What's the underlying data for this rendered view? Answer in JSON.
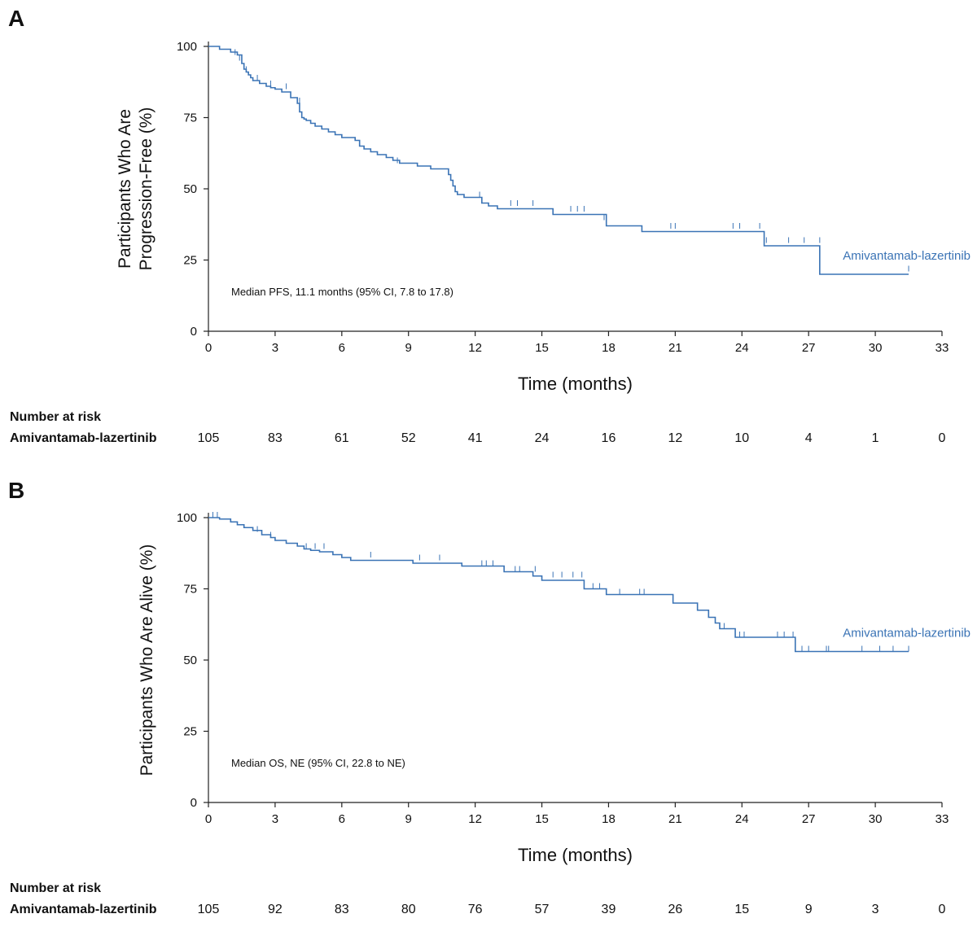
{
  "chart_data": [
    {
      "type": "line",
      "panel": "A",
      "xlabel": "Time (months)",
      "ylabel": [
        "Participants Who Are",
        "Progression-Free (%)"
      ],
      "xlim": [
        0,
        33
      ],
      "ylim": [
        0,
        100
      ],
      "xticks": [
        0,
        3,
        6,
        9,
        12,
        15,
        18,
        21,
        24,
        27,
        30,
        33
      ],
      "yticks": [
        0,
        25,
        50,
        75,
        100
      ],
      "annotation": "Median PFS, 11.1 months (95% CI, 7.8 to 17.8)",
      "series": [
        {
          "name": "Amivantamab-lazertinib",
          "color": "#3a73b5",
          "x": [
            0,
            0.5,
            1.0,
            1.3,
            1.5,
            1.6,
            1.7,
            1.8,
            1.9,
            2.0,
            2.3,
            2.6,
            2.8,
            3.0,
            3.3,
            3.7,
            4.0,
            4.1,
            4.2,
            4.3,
            4.4,
            4.6,
            4.8,
            5.1,
            5.4,
            5.7,
            6.0,
            6.6,
            6.8,
            7.0,
            7.3,
            7.6,
            8.0,
            8.3,
            8.6,
            9.4,
            10.0,
            10.8,
            10.9,
            11.0,
            11.1,
            11.2,
            11.5,
            12.3,
            12.6,
            13.0,
            15.5,
            17.9,
            19.5,
            25.0,
            27.5,
            31.5
          ],
          "y": [
            100,
            99,
            98,
            97,
            94,
            92,
            91,
            90,
            89,
            88,
            87,
            86,
            85.5,
            85,
            84,
            82,
            80,
            77,
            75,
            74.5,
            74,
            73,
            72,
            71,
            70,
            69,
            68,
            67,
            65,
            64,
            63,
            62,
            61,
            60,
            59,
            58,
            57,
            55,
            53,
            51,
            49,
            48,
            47,
            45,
            44,
            43,
            41,
            37,
            35,
            30,
            20,
            20
          ],
          "censor_x": [
            1.2,
            1.4,
            1.7,
            2.2,
            2.8,
            3.5,
            4.1,
            8.5,
            12.2,
            13.6,
            13.9,
            14.6,
            16.3,
            16.6,
            16.9,
            17.8,
            20.8,
            21.0,
            23.6,
            23.9,
            24.8,
            25.1,
            26.1,
            26.8,
            27.5,
            31.5
          ],
          "censor_y": [
            97,
            95,
            91,
            88,
            86,
            85,
            80,
            59,
            47,
            44,
            44,
            44,
            42,
            42,
            42,
            39,
            36,
            36,
            36,
            36,
            36,
            31,
            31,
            31,
            31,
            21
          ]
        }
      ],
      "risk_table": {
        "title": "Number at risk",
        "group": "Amivantamab-lazertinib",
        "times": [
          0,
          3,
          6,
          9,
          12,
          15,
          18,
          21,
          24,
          27,
          30,
          33
        ],
        "values": [
          "105",
          "83",
          "61",
          "52",
          "41",
          "24",
          "16",
          "12",
          "10",
          "4",
          "1",
          "0"
        ]
      }
    },
    {
      "type": "line",
      "panel": "B",
      "xlabel": "Time (months)",
      "ylabel": [
        "Participants Who Are Alive (%)"
      ],
      "xlim": [
        0,
        33
      ],
      "ylim": [
        0,
        100
      ],
      "xticks": [
        0,
        3,
        6,
        9,
        12,
        15,
        18,
        21,
        24,
        27,
        30,
        33
      ],
      "yticks": [
        0,
        25,
        50,
        75,
        100
      ],
      "annotation": "Median OS, NE (95% CI, 22.8 to NE)",
      "series": [
        {
          "name": "Amivantamab-lazertinib",
          "color": "#3a73b5",
          "x": [
            0,
            0.5,
            1.0,
            1.3,
            1.6,
            2.0,
            2.4,
            2.8,
            3.0,
            3.5,
            4.0,
            4.3,
            4.6,
            5.0,
            5.6,
            6.0,
            6.4,
            9.2,
            11.4,
            13.3,
            14.6,
            15.0,
            16.9,
            17.9,
            20.9,
            22.0,
            22.5,
            22.8,
            23.0,
            23.7,
            26.4,
            31.5
          ],
          "y": [
            100,
            99.5,
            98.5,
            97.5,
            96.5,
            95.5,
            94,
            93,
            92,
            91,
            90,
            89,
            88.5,
            88,
            87,
            86,
            85,
            84,
            83,
            81,
            79.5,
            78,
            75,
            73,
            70,
            67.5,
            65,
            63,
            61,
            58,
            53,
            53
          ],
          "censor_x": [
            0.2,
            0.4,
            2.2,
            2.8,
            4.4,
            4.8,
            5.2,
            7.3,
            9.5,
            10.4,
            12.3,
            12.5,
            12.8,
            13.8,
            14.0,
            14.7,
            15.5,
            15.9,
            16.4,
            16.8,
            17.3,
            17.6,
            18.5,
            19.4,
            19.6,
            22.8,
            23.2,
            23.9,
            24.1,
            25.6,
            25.9,
            26.3,
            26.7,
            27.0,
            27.8,
            27.9,
            29.4,
            30.2,
            30.8,
            31.5
          ],
          "censor_y": [
            100,
            100,
            95,
            93,
            89,
            89,
            89,
            86,
            85,
            85,
            83,
            83,
            83,
            81,
            81,
            81,
            79,
            79,
            79,
            79,
            75,
            75,
            73,
            73,
            73,
            63,
            61,
            58,
            58,
            58,
            58,
            58,
            53,
            53,
            53,
            53,
            53,
            53,
            53,
            53
          ]
        }
      ],
      "risk_table": {
        "title": "Number at risk",
        "group": "Amivantamab-lazertinib",
        "times": [
          0,
          3,
          6,
          9,
          12,
          15,
          18,
          21,
          24,
          27,
          30,
          33
        ],
        "values": [
          "105",
          "92",
          "83",
          "80",
          "76",
          "57",
          "39",
          "26",
          "15",
          "9",
          "3",
          "0"
        ]
      }
    }
  ]
}
